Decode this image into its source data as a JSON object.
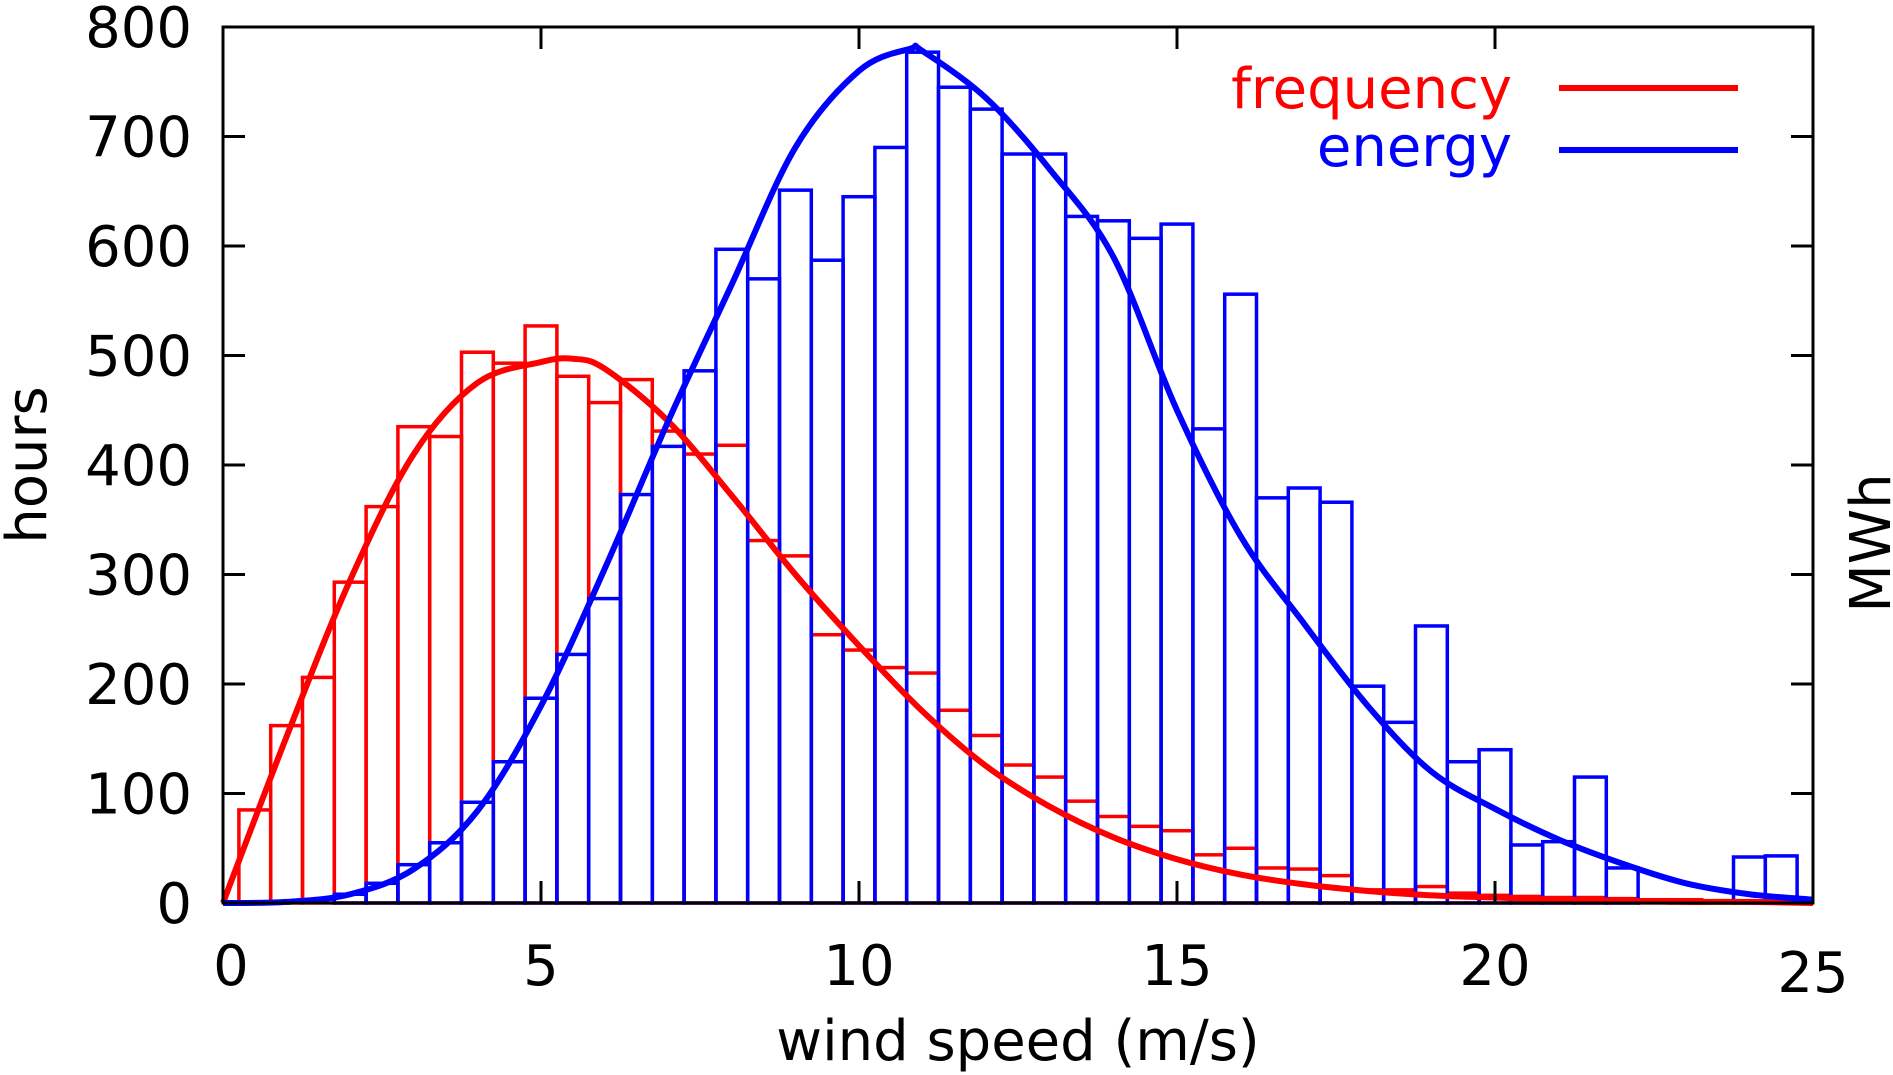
{
  "chart_data": {
    "type": "bar",
    "xlabel": "wind speed (m/s)",
    "ylabel": "hours",
    "y2label": "MWh",
    "xlim": [
      0,
      25
    ],
    "ylim": [
      0,
      800
    ],
    "xticks": [
      "0",
      "5",
      "10",
      "15",
      "20",
      "25"
    ],
    "yticks": [
      "0",
      "100",
      "200",
      "300",
      "400",
      "500",
      "600",
      "700",
      "800"
    ],
    "grid": false,
    "legend_position": "top-right",
    "bin_width": 0.5,
    "bin_centers": [
      0.5,
      1,
      1.5,
      2,
      2.5,
      3,
      3.5,
      4,
      4.5,
      5,
      5.5,
      6,
      6.5,
      7,
      7.5,
      8,
      8.5,
      9,
      9.5,
      10,
      10.5,
      11,
      11.5,
      12,
      12.5,
      13,
      13.5,
      14,
      14.5,
      15,
      15.5,
      16,
      16.5,
      17,
      17.5,
      18,
      18.5,
      19,
      19.5,
      20,
      20.5,
      21,
      21.5,
      22,
      22.5,
      23,
      23.5,
      24,
      24.5
    ],
    "histograms": [
      {
        "color": "#ff0000",
        "values": [
          85,
          162,
          206,
          293,
          362,
          435,
          426,
          503,
          493,
          527,
          481,
          457,
          478,
          431,
          410,
          418,
          331,
          317,
          245,
          231,
          215,
          210,
          176,
          153,
          126,
          115,
          93,
          79,
          70,
          66,
          44,
          50,
          32,
          31,
          25,
          12,
          12,
          15,
          9,
          7,
          6,
          5,
          5,
          4,
          3,
          3,
          2,
          2,
          2
        ]
      },
      {
        "color": "#0000ff",
        "values": [
          0,
          0,
          0,
          8,
          18,
          35,
          55,
          92,
          129,
          187,
          227,
          278,
          373,
          417,
          486,
          597,
          570,
          651,
          587,
          645,
          690,
          777,
          745,
          725,
          684,
          684,
          627,
          623,
          607,
          620,
          433,
          556,
          370,
          379,
          366,
          198,
          165,
          253,
          129,
          140,
          53,
          56,
          115,
          32,
          0,
          0,
          0,
          42,
          43
        ]
      }
    ],
    "series": [
      {
        "name": "frequency",
        "color": "#ff0000",
        "x": [
          0,
          1,
          2,
          3,
          4,
          5,
          5.5,
          6,
          7,
          8,
          9,
          10,
          11,
          12,
          13,
          14,
          15,
          16,
          17,
          18,
          19,
          20,
          21,
          22,
          23,
          24,
          25
        ],
        "y": [
          0,
          152,
          295,
          410,
          475,
          494,
          497,
          488,
          440,
          372,
          300,
          235,
          175,
          125,
          88,
          60,
          40,
          26,
          17,
          11,
          7,
          5,
          3,
          2,
          1,
          1,
          0
        ]
      },
      {
        "name": "energy",
        "color": "#0000ff",
        "x": [
          0,
          1,
          2,
          3,
          4,
          5,
          6,
          7,
          8,
          9,
          10,
          10.8,
          11,
          12,
          13,
          14,
          15,
          16,
          17,
          18,
          19,
          20,
          21,
          22,
          23,
          24,
          25
        ],
        "y": [
          0,
          1,
          8,
          31,
          84,
          180,
          305,
          440,
          565,
          690,
          760,
          780,
          778,
          735,
          670,
          590,
          450,
          335,
          255,
          180,
          120,
          86,
          58,
          36,
          18,
          8,
          3
        ]
      }
    ]
  }
}
